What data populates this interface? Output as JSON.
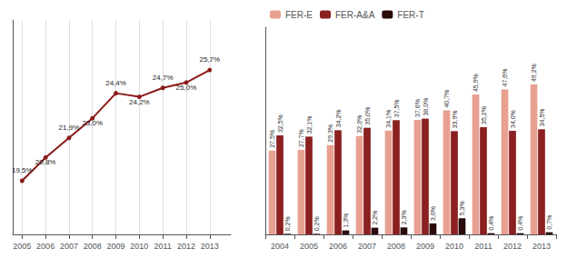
{
  "chart_data": [
    {
      "type": "line",
      "x": [
        2005,
        2006,
        2007,
        2008,
        2009,
        2010,
        2011,
        2012,
        2013
      ],
      "values": [
        19.5,
        20.8,
        21.9,
        23.0,
        24.4,
        24.2,
        24.7,
        25.0,
        25.7
      ],
      "value_labels": [
        "19,5%",
        "20,8%",
        "21,9%",
        "23,0%",
        "24,4%",
        "24,2%",
        "24,7%",
        "25,0%",
        "25,7%"
      ],
      "color": "#8B1A1A",
      "marker": "circle",
      "xlim": [
        2004.6,
        2013.9
      ],
      "xticks": [
        2005,
        2006,
        2007,
        2008,
        2009,
        2010,
        2011,
        2012,
        2013
      ],
      "ylim": [
        16.5,
        28.5
      ],
      "yticks": [],
      "grid": true,
      "data_labels": true,
      "tick_labels": "x"
    },
    {
      "type": "bar",
      "categories": [
        "2004",
        "2005",
        "2006",
        "2007",
        "2008",
        "2009",
        "2010",
        "2011",
        "2012",
        "2013"
      ],
      "series": [
        {
          "name": "FER-E",
          "color": "#E8A090",
          "values": [
            27.5,
            27.7,
            29.3,
            32.3,
            34.1,
            37.6,
            40.7,
            45.9,
            47.6,
            49.2
          ],
          "value_labels": [
            "27,5%",
            "27,7%",
            "29,3%",
            "32,3%",
            "34,1%",
            "37,6%",
            "40,7%",
            "45,9%",
            "47,6%",
            "49,2%"
          ]
        },
        {
          "name": "FER-A&A",
          "color": "#8B2020",
          "values": [
            32.5,
            32.1,
            34.2,
            35.0,
            37.5,
            38.0,
            33.9,
            35.2,
            34.0,
            34.5
          ],
          "value_labels": [
            "32,5%",
            "32,1%",
            "34,2%",
            "35,0%",
            "37,5%",
            "38,0%",
            "33,9%",
            "35,2%",
            "34,0%",
            "34,5%"
          ]
        },
        {
          "name": "FER-T",
          "color": "#2A0A0A",
          "values": [
            0.2,
            0.2,
            1.3,
            2.2,
            2.3,
            3.6,
            5.3,
            0.4,
            0.4,
            0.7
          ],
          "value_labels": [
            "0,2%",
            "0,2%",
            "1,3%",
            "2,2%",
            "2,3%",
            "3,6%",
            "5,3%",
            "0,4%",
            "0,4%",
            "0,7%"
          ]
        }
      ],
      "ylim": [
        0,
        68
      ],
      "yticks": [],
      "grid": false,
      "legend": "upper left",
      "data_labels": true,
      "tick_labels": "x"
    }
  ]
}
